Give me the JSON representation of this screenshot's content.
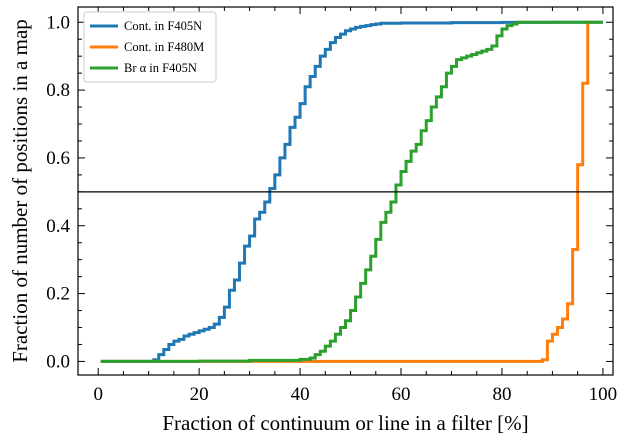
{
  "chart_data": {
    "type": "line",
    "step": true,
    "title": "",
    "xlabel": "Fraction of continuum or line in a filter [%]",
    "ylabel": "Fraction of number of positions in a map",
    "xlim": [
      -4,
      102
    ],
    "ylim": [
      -0.04,
      1.045
    ],
    "xticks": [
      0,
      20,
      40,
      60,
      80,
      100
    ],
    "yticks": [
      0.0,
      0.2,
      0.4,
      0.6,
      0.8,
      1.0
    ],
    "xtick_labels": [
      "0",
      "20",
      "40",
      "60",
      "80",
      "100"
    ],
    "ytick_labels": [
      "0.0",
      "0.2",
      "0.4",
      "0.6",
      "0.8",
      "1.0"
    ],
    "grid": false,
    "legend_position": "top-left",
    "hline": {
      "y": 0.5,
      "color": "#000000"
    },
    "series": [
      {
        "name": "Cont. in F405N",
        "color": "#1f77b4",
        "x": [
          0.5,
          11,
          12,
          13,
          14,
          15,
          16,
          17,
          18,
          19,
          20,
          21,
          22,
          23,
          24,
          25,
          26,
          27,
          28,
          29,
          30,
          31,
          32,
          33,
          34,
          35,
          36,
          37,
          38,
          39,
          40,
          41,
          42,
          43,
          44,
          45,
          46,
          47,
          48,
          49,
          50,
          51,
          52,
          53,
          54,
          55,
          56,
          60,
          70,
          80,
          90,
          100
        ],
        "y": [
          0.0,
          0.005,
          0.02,
          0.035,
          0.05,
          0.06,
          0.065,
          0.075,
          0.08,
          0.085,
          0.09,
          0.095,
          0.1,
          0.11,
          0.13,
          0.16,
          0.21,
          0.24,
          0.29,
          0.34,
          0.37,
          0.42,
          0.44,
          0.47,
          0.51,
          0.55,
          0.6,
          0.64,
          0.69,
          0.72,
          0.76,
          0.81,
          0.84,
          0.87,
          0.9,
          0.92,
          0.94,
          0.955,
          0.965,
          0.975,
          0.98,
          0.985,
          0.988,
          0.99,
          0.993,
          0.995,
          0.997,
          0.998,
          0.999,
          0.9995,
          1.0,
          1.0
        ]
      },
      {
        "name": "Cont. in F480M",
        "color": "#ff7f0e",
        "x": [
          0.5,
          40,
          60,
          80,
          87,
          88,
          89,
          90,
          91,
          92,
          93,
          94,
          95,
          96,
          97,
          98
        ],
        "y": [
          0.0,
          0.0,
          0.0,
          0.0,
          0.0,
          0.005,
          0.06,
          0.08,
          0.1,
          0.125,
          0.17,
          0.33,
          0.58,
          0.82,
          1.0,
          1.0
        ]
      },
      {
        "name": "Br α in F405N",
        "color": "#2ca02c",
        "x": [
          0.5,
          20,
          30,
          40,
          42,
          43,
          44,
          45,
          46,
          47,
          48,
          49,
          50,
          51,
          52,
          53,
          54,
          55,
          56,
          57,
          58,
          59,
          60,
          61,
          62,
          63,
          64,
          65,
          66,
          67,
          68,
          69,
          70,
          71,
          72,
          73,
          74,
          75,
          76,
          77,
          78,
          79,
          80,
          81,
          82,
          83,
          84,
          100
        ],
        "y": [
          0.0,
          0.001,
          0.003,
          0.006,
          0.01,
          0.02,
          0.03,
          0.045,
          0.06,
          0.08,
          0.1,
          0.12,
          0.15,
          0.19,
          0.23,
          0.27,
          0.31,
          0.36,
          0.41,
          0.44,
          0.47,
          0.52,
          0.56,
          0.59,
          0.62,
          0.64,
          0.68,
          0.71,
          0.75,
          0.78,
          0.81,
          0.85,
          0.87,
          0.89,
          0.895,
          0.9,
          0.905,
          0.91,
          0.915,
          0.92,
          0.93,
          0.96,
          0.98,
          0.99,
          0.995,
          1.0,
          1.0,
          1.0
        ]
      }
    ]
  }
}
